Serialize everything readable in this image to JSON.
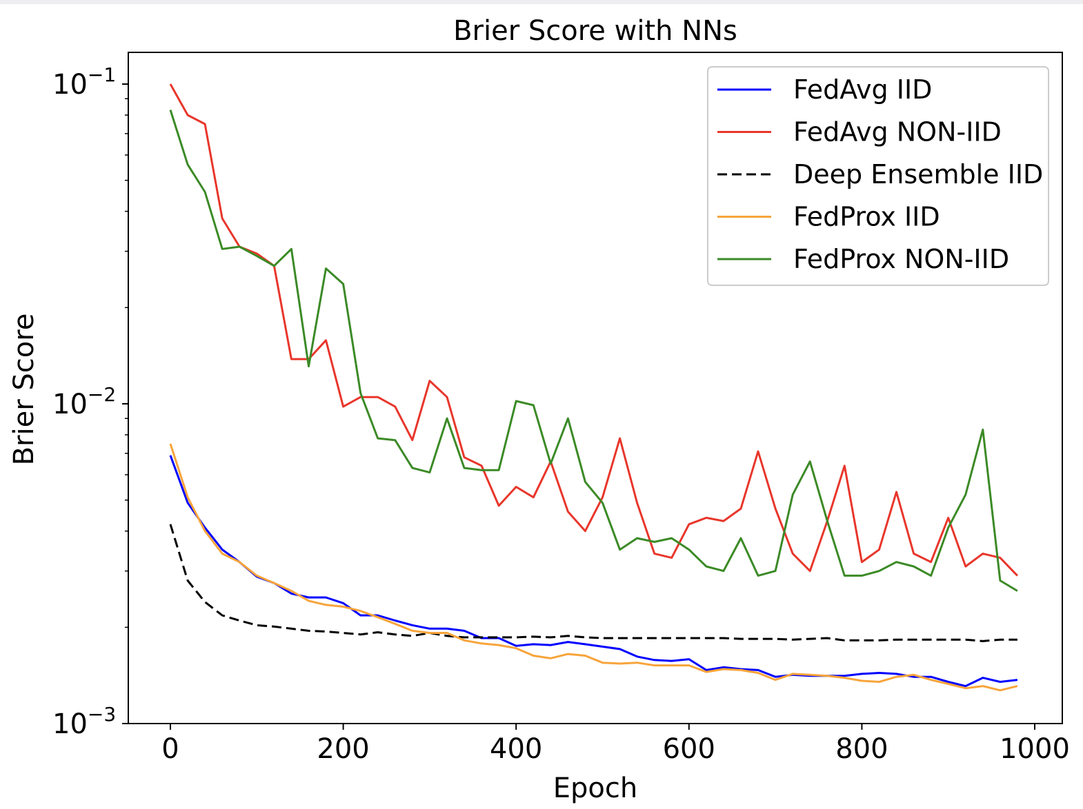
{
  "chart_data": {
    "type": "line",
    "title": "Brier Score with NNs",
    "xlabel": "Epoch",
    "ylabel": "Brier Score",
    "xlim": [
      -50,
      1030
    ],
    "ylim": [
      0.001,
      0.1
    ],
    "yscale": "log",
    "grid": false,
    "legend_position": "top-right",
    "xticks": [
      {
        "value": 0,
        "label": "0"
      },
      {
        "value": 200,
        "label": "200"
      },
      {
        "value": 400,
        "label": "400"
      },
      {
        "value": 600,
        "label": "600"
      },
      {
        "value": 800,
        "label": "800"
      },
      {
        "value": 1000,
        "label": "1000"
      }
    ],
    "yticks": [
      {
        "value": 0.1,
        "base": "10",
        "exp": "−1"
      },
      {
        "value": 0.01,
        "base": "10",
        "exp": "−2"
      },
      {
        "value": 0.001,
        "base": "10",
        "exp": "−3"
      }
    ],
    "x": [
      0,
      20,
      40,
      60,
      80,
      100,
      120,
      140,
      160,
      180,
      200,
      220,
      240,
      260,
      280,
      300,
      320,
      340,
      360,
      380,
      400,
      420,
      440,
      460,
      480,
      500,
      520,
      540,
      560,
      580,
      600,
      620,
      640,
      660,
      680,
      700,
      720,
      740,
      760,
      780,
      800,
      820,
      840,
      860,
      880,
      900,
      920,
      940,
      960,
      980
    ],
    "series": [
      {
        "name": "FedAvg IID",
        "color": "#0000ff",
        "dash": "solid",
        "values": [
          0.0069,
          0.0049,
          0.0041,
          0.0035,
          0.0032,
          0.00288,
          0.00275,
          0.00255,
          0.00248,
          0.00248,
          0.00238,
          0.00218,
          0.00218,
          0.0021,
          0.00203,
          0.00198,
          0.00198,
          0.00195,
          0.00185,
          0.00185,
          0.00175,
          0.00177,
          0.00176,
          0.0018,
          0.00177,
          0.00174,
          0.00171,
          0.00162,
          0.00158,
          0.00157,
          0.00159,
          0.00147,
          0.0015,
          0.00148,
          0.00147,
          0.0014,
          0.00142,
          0.00141,
          0.00141,
          0.00141,
          0.00143,
          0.00144,
          0.00143,
          0.0014,
          0.0014,
          0.00135,
          0.00131,
          0.00139,
          0.00135,
          0.00137
        ]
      },
      {
        "name": "FedAvg NON-IID",
        "color": "#e8362b",
        "dash": "solid",
        "values": [
          0.1,
          0.08,
          0.075,
          0.038,
          0.031,
          0.0295,
          0.027,
          0.0138,
          0.0138,
          0.0158,
          0.0098,
          0.0105,
          0.0105,
          0.0098,
          0.0077,
          0.0118,
          0.0105,
          0.0068,
          0.0064,
          0.0048,
          0.0055,
          0.0051,
          0.0066,
          0.0046,
          0.004,
          0.0051,
          0.0078,
          0.0049,
          0.0034,
          0.0033,
          0.0042,
          0.0044,
          0.0043,
          0.0047,
          0.0071,
          0.0047,
          0.0034,
          0.003,
          0.0043,
          0.0064,
          0.0032,
          0.0035,
          0.0053,
          0.0034,
          0.0032,
          0.0044,
          0.0031,
          0.0034,
          0.0033,
          0.0029
        ]
      },
      {
        "name": "Deep Ensemble IID",
        "color": "#000000",
        "dash": "dashed",
        "values": [
          0.0042,
          0.0028,
          0.0024,
          0.00218,
          0.0021,
          0.00203,
          0.00201,
          0.00198,
          0.00195,
          0.00194,
          0.00192,
          0.0019,
          0.00193,
          0.0019,
          0.00188,
          0.00192,
          0.00188,
          0.00186,
          0.00186,
          0.00186,
          0.00186,
          0.00187,
          0.00186,
          0.00188,
          0.00186,
          0.00185,
          0.00185,
          0.00185,
          0.00185,
          0.00185,
          0.00185,
          0.00185,
          0.00185,
          0.00184,
          0.00184,
          0.00184,
          0.00183,
          0.00184,
          0.00185,
          0.00182,
          0.00182,
          0.00182,
          0.00183,
          0.00183,
          0.00183,
          0.00183,
          0.00183,
          0.00181,
          0.00183,
          0.00183
        ]
      },
      {
        "name": "FedProx IID",
        "color": "#f7a43a",
        "dash": "solid",
        "values": [
          0.0075,
          0.0051,
          0.004,
          0.0034,
          0.0032,
          0.0029,
          0.00275,
          0.0026,
          0.00242,
          0.00235,
          0.00232,
          0.00225,
          0.00215,
          0.00205,
          0.00195,
          0.00192,
          0.00192,
          0.00182,
          0.00178,
          0.00176,
          0.00172,
          0.00163,
          0.0016,
          0.00165,
          0.00163,
          0.00155,
          0.00154,
          0.00155,
          0.00152,
          0.00152,
          0.00152,
          0.00145,
          0.00148,
          0.00147,
          0.00144,
          0.00137,
          0.00143,
          0.00142,
          0.00141,
          0.00139,
          0.00136,
          0.00135,
          0.0014,
          0.00142,
          0.00137,
          0.00133,
          0.00129,
          0.00131,
          0.00127,
          0.00131
        ]
      },
      {
        "name": "FedProx NON-IID",
        "color": "#3b8a26",
        "dash": "solid",
        "values": [
          0.083,
          0.056,
          0.046,
          0.0305,
          0.031,
          0.029,
          0.027,
          0.0305,
          0.0131,
          0.0265,
          0.0237,
          0.0108,
          0.0078,
          0.0077,
          0.0063,
          0.0061,
          0.009,
          0.0063,
          0.0062,
          0.0062,
          0.0102,
          0.0099,
          0.0065,
          0.009,
          0.0057,
          0.0049,
          0.0035,
          0.0038,
          0.0037,
          0.0038,
          0.0035,
          0.0031,
          0.003,
          0.0038,
          0.0029,
          0.003,
          0.0052,
          0.0066,
          0.0043,
          0.0029,
          0.0029,
          0.003,
          0.0032,
          0.0031,
          0.0029,
          0.0041,
          0.0052,
          0.0083,
          0.0028,
          0.0026
        ]
      }
    ]
  }
}
